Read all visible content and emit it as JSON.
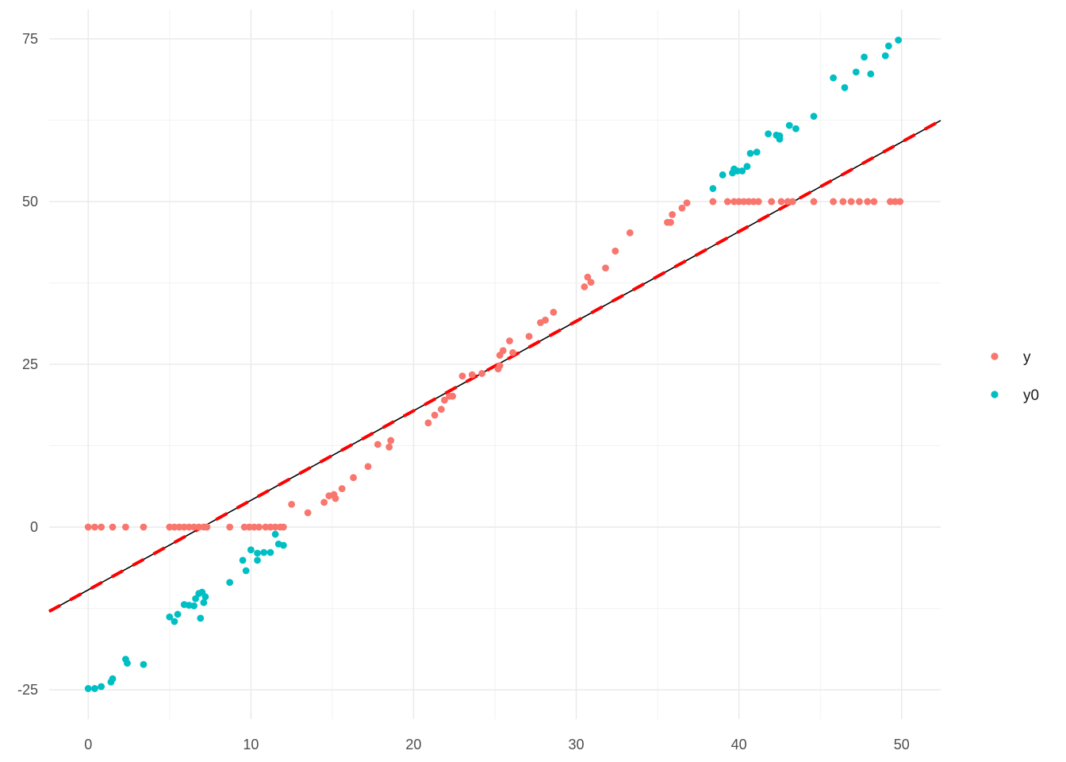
{
  "chart_data": {
    "type": "scatter",
    "title": "",
    "xlabel": "",
    "ylabel": "",
    "xlim": [
      -2.4,
      52.4
    ],
    "ylim": [
      -29.5,
      79.5
    ],
    "x_ticks": [
      0,
      10,
      20,
      30,
      40,
      50
    ],
    "y_ticks": [
      -25,
      0,
      25,
      50,
      75
    ],
    "grid": true,
    "legend_position": "right",
    "series": [
      {
        "name": "y",
        "color": "#F8766D",
        "points": [
          [
            0.0,
            0
          ],
          [
            0.4,
            0
          ],
          [
            0.8,
            0
          ],
          [
            1.5,
            0
          ],
          [
            2.3,
            0
          ],
          [
            3.4,
            0
          ],
          [
            5.0,
            0
          ],
          [
            5.3,
            0
          ],
          [
            5.6,
            0
          ],
          [
            5.9,
            0
          ],
          [
            6.2,
            0
          ],
          [
            6.5,
            0
          ],
          [
            6.8,
            0
          ],
          [
            7.1,
            0
          ],
          [
            7.3,
            0
          ],
          [
            8.7,
            0
          ],
          [
            9.6,
            0
          ],
          [
            9.9,
            0
          ],
          [
            10.2,
            0
          ],
          [
            10.5,
            0
          ],
          [
            10.9,
            0
          ],
          [
            11.2,
            0
          ],
          [
            11.5,
            0
          ],
          [
            11.8,
            0
          ],
          [
            12.0,
            0
          ],
          [
            12.5,
            3.5
          ],
          [
            13.5,
            2.2
          ],
          [
            14.5,
            3.8
          ],
          [
            14.8,
            4.8
          ],
          [
            15.1,
            5.0
          ],
          [
            15.2,
            4.4
          ],
          [
            15.6,
            5.9
          ],
          [
            16.3,
            7.6
          ],
          [
            17.2,
            9.3
          ],
          [
            17.8,
            12.7
          ],
          [
            18.5,
            12.3
          ],
          [
            18.6,
            13.3
          ],
          [
            20.9,
            16.0
          ],
          [
            21.3,
            17.2
          ],
          [
            21.7,
            18.1
          ],
          [
            21.9,
            19.5
          ],
          [
            22.2,
            20.1
          ],
          [
            22.4,
            20.1
          ],
          [
            23.0,
            23.2
          ],
          [
            23.6,
            23.4
          ],
          [
            24.2,
            23.6
          ],
          [
            25.2,
            24.3
          ],
          [
            25.3,
            24.8
          ],
          [
            25.3,
            26.4
          ],
          [
            25.5,
            27.1
          ],
          [
            25.9,
            28.6
          ],
          [
            26.1,
            26.8
          ],
          [
            27.1,
            29.3
          ],
          [
            27.8,
            31.4
          ],
          [
            28.1,
            31.8
          ],
          [
            28.6,
            33.0
          ],
          [
            30.5,
            36.9
          ],
          [
            30.7,
            38.4
          ],
          [
            30.9,
            37.6
          ],
          [
            31.8,
            39.8
          ],
          [
            32.4,
            42.4
          ],
          [
            33.3,
            45.2
          ],
          [
            35.6,
            46.8
          ],
          [
            35.8,
            46.8
          ],
          [
            35.9,
            48.0
          ],
          [
            36.5,
            49.0
          ],
          [
            36.8,
            49.8
          ],
          [
            38.4,
            50
          ],
          [
            39.3,
            50
          ],
          [
            39.7,
            50
          ],
          [
            40.0,
            50
          ],
          [
            40.3,
            50
          ],
          [
            40.6,
            50
          ],
          [
            40.9,
            50
          ],
          [
            41.2,
            50
          ],
          [
            42.0,
            50
          ],
          [
            42.6,
            50
          ],
          [
            43.0,
            50
          ],
          [
            43.3,
            50
          ],
          [
            44.6,
            50
          ],
          [
            45.8,
            50
          ],
          [
            46.4,
            50
          ],
          [
            46.9,
            50
          ],
          [
            47.4,
            50
          ],
          [
            47.9,
            50
          ],
          [
            48.3,
            50
          ],
          [
            49.3,
            50
          ],
          [
            49.6,
            50
          ],
          [
            49.9,
            50
          ]
        ]
      },
      {
        "name": "y0",
        "color": "#00BFC4",
        "points": [
          [
            0.0,
            -24.8
          ],
          [
            0.4,
            -24.8
          ],
          [
            0.8,
            -24.5
          ],
          [
            1.5,
            -23.3
          ],
          [
            1.4,
            -23.8
          ],
          [
            2.3,
            -20.3
          ],
          [
            2.4,
            -20.9
          ],
          [
            3.4,
            -21.1
          ],
          [
            5.0,
            -13.8
          ],
          [
            5.3,
            -14.5
          ],
          [
            5.5,
            -13.4
          ],
          [
            5.9,
            -11.9
          ],
          [
            6.2,
            -12.0
          ],
          [
            6.5,
            -12.1
          ],
          [
            6.6,
            -11.0
          ],
          [
            6.8,
            -10.2
          ],
          [
            6.9,
            -14.0
          ],
          [
            7.0,
            -10.0
          ],
          [
            7.1,
            -11.6
          ],
          [
            7.2,
            -10.7
          ],
          [
            8.7,
            -8.5
          ],
          [
            9.5,
            -5.1
          ],
          [
            9.7,
            -6.7
          ],
          [
            10.0,
            -3.5
          ],
          [
            10.4,
            -4.0
          ],
          [
            10.4,
            -5.1
          ],
          [
            10.8,
            -3.9
          ],
          [
            11.2,
            -3.9
          ],
          [
            11.5,
            -1.1
          ],
          [
            11.7,
            -2.6
          ],
          [
            12.0,
            -2.8
          ],
          [
            38.4,
            52.0
          ],
          [
            39.0,
            54.1
          ],
          [
            39.6,
            54.4
          ],
          [
            39.7,
            55.0
          ],
          [
            39.9,
            54.7
          ],
          [
            40.2,
            54.7
          ],
          [
            40.5,
            55.4
          ],
          [
            40.7,
            57.4
          ],
          [
            41.1,
            57.6
          ],
          [
            41.8,
            60.4
          ],
          [
            42.3,
            60.2
          ],
          [
            42.5,
            59.6
          ],
          [
            42.5,
            60.1
          ],
          [
            43.1,
            61.7
          ],
          [
            43.5,
            61.2
          ],
          [
            44.6,
            63.1
          ],
          [
            45.8,
            69.0
          ],
          [
            46.5,
            67.5
          ],
          [
            47.2,
            69.9
          ],
          [
            47.7,
            72.2
          ],
          [
            48.1,
            69.6
          ],
          [
            49.0,
            72.4
          ],
          [
            49.2,
            73.9
          ],
          [
            49.8,
            74.8
          ]
        ]
      }
    ],
    "reference_lines": [
      {
        "slope": 1.376,
        "intercept": -9.65,
        "color": "#000000",
        "style": "solid"
      },
      {
        "slope": 1.376,
        "intercept": -9.65,
        "color": "#FF0000",
        "style": "dashed"
      }
    ]
  }
}
